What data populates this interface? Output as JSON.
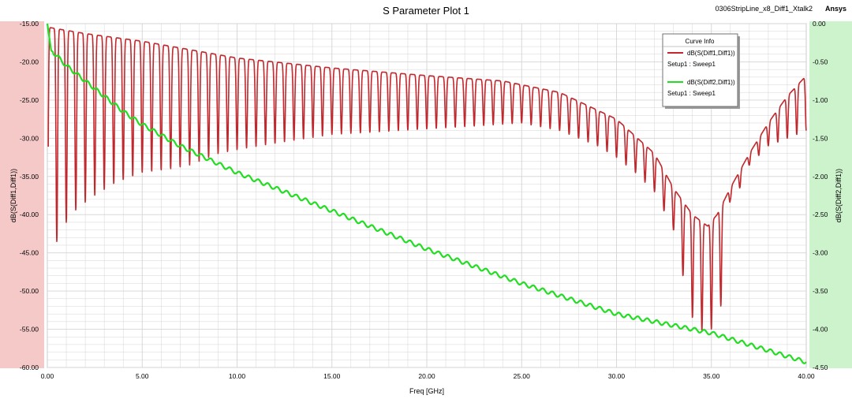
{
  "header": {
    "title": "S Parameter Plot 1",
    "design_name": "0306StripLine_x8_Diff1_Xtalk2",
    "brand": "Ansys"
  },
  "legend": {
    "title": "Curve Info",
    "entries": [
      {
        "name": "dB(S(Diff1,Diff1))",
        "sub": "Setup1 : Sweep1",
        "color": "#c0282d"
      },
      {
        "name": "dB(S(Diff2,Diff1))",
        "sub": "Setup1 : Sweep1",
        "color": "#22dd22"
      }
    ]
  },
  "colors": {
    "left_band": "#f6c9c9",
    "right_band": "#cdf3cd",
    "grid": "#d4d4d4",
    "series1": "#c0282d",
    "series2": "#22dd22"
  },
  "chart_data": {
    "type": "line",
    "title": "S Parameter Plot 1",
    "xlabel": "Freq [GHz]",
    "ylabel_left": "dB(S(Diff1,Diff1))",
    "ylabel_right": "dB(S(Diff2,Diff1))",
    "xlim": [
      0,
      40
    ],
    "ylim_left": [
      -60,
      -15
    ],
    "ylim_right": [
      -4.5,
      0
    ],
    "x_ticks": [
      "0.00",
      "5.00",
      "10.00",
      "15.00",
      "20.00",
      "25.00",
      "30.00",
      "35.00",
      "40.00"
    ],
    "y_ticks_left": [
      "-15.00",
      "-20.00",
      "-25.00",
      "-30.00",
      "-35.00",
      "-40.00",
      "-45.00",
      "-50.00",
      "-55.00",
      "-60.00"
    ],
    "y_ticks_right": [
      "0.00",
      "-0.50",
      "-1.00",
      "-1.50",
      "-2.00",
      "-2.50",
      "-3.00",
      "-3.50",
      "-4.00",
      "-4.50"
    ],
    "grid": true,
    "legend_position": "top-right",
    "series": [
      {
        "name": "dB(S(Diff1,Diff1))",
        "axis": "left",
        "peak_spacing_ghz": 0.5,
        "peak_envelope": [
          [
            0.1,
            -15.5
          ],
          [
            2,
            -16.3
          ],
          [
            5,
            -17.3
          ],
          [
            10,
            -19.5
          ],
          [
            15,
            -20.8
          ],
          [
            20,
            -21.8
          ],
          [
            24,
            -22.5
          ],
          [
            27,
            -24.0
          ],
          [
            30,
            -27.5
          ],
          [
            32,
            -32.0
          ],
          [
            33,
            -36.5
          ],
          [
            34,
            -40.0
          ],
          [
            34.8,
            -41.5
          ],
          [
            35.3,
            -40.0
          ],
          [
            36,
            -36.5
          ],
          [
            37,
            -32.0
          ],
          [
            38,
            -28.0
          ],
          [
            39,
            -24.5
          ],
          [
            40,
            -21.8
          ]
        ],
        "trough_envelope": [
          [
            0.1,
            -47.0
          ],
          [
            0.5,
            -43.5
          ],
          [
            1.2,
            -40.0
          ],
          [
            2.3,
            -37.8
          ],
          [
            3.5,
            -36.0
          ],
          [
            5,
            -34.5
          ],
          [
            6.5,
            -34.0
          ],
          [
            7.5,
            -33.5
          ],
          [
            9,
            -32.0
          ],
          [
            10,
            -31.5
          ],
          [
            15,
            -29.5
          ],
          [
            20,
            -28.8
          ],
          [
            25,
            -28.0
          ],
          [
            27,
            -29.0
          ],
          [
            29,
            -31.0
          ],
          [
            30,
            -32.5
          ],
          [
            31,
            -34.5
          ],
          [
            32,
            -37.0
          ],
          [
            33,
            -42.0
          ],
          [
            33.5,
            -48.0
          ],
          [
            34,
            -53.5
          ],
          [
            34.8,
            -56.2
          ],
          [
            35.5,
            -52.0
          ],
          [
            36,
            -38.0
          ],
          [
            36.5,
            -36.5
          ],
          [
            37,
            -33.5
          ],
          [
            38,
            -31.0
          ],
          [
            39,
            -30.0
          ],
          [
            40,
            -29.0
          ]
        ]
      },
      {
        "name": "dB(S(Diff2,Diff1))",
        "axis": "right",
        "ripple_spacing_ghz": 0.5,
        "ripple_amplitude": 0.025,
        "points": [
          [
            0.0,
            0.0
          ],
          [
            0.2,
            -0.35
          ],
          [
            0.5,
            -0.42
          ],
          [
            1,
            -0.55
          ],
          [
            2,
            -0.75
          ],
          [
            3,
            -0.95
          ],
          [
            4,
            -1.15
          ],
          [
            5,
            -1.32
          ],
          [
            7,
            -1.6
          ],
          [
            10,
            -1.95
          ],
          [
            15,
            -2.45
          ],
          [
            20,
            -2.95
          ],
          [
            25,
            -3.4
          ],
          [
            30,
            -3.8
          ],
          [
            35,
            -4.05
          ],
          [
            40,
            -4.43
          ]
        ]
      }
    ]
  }
}
